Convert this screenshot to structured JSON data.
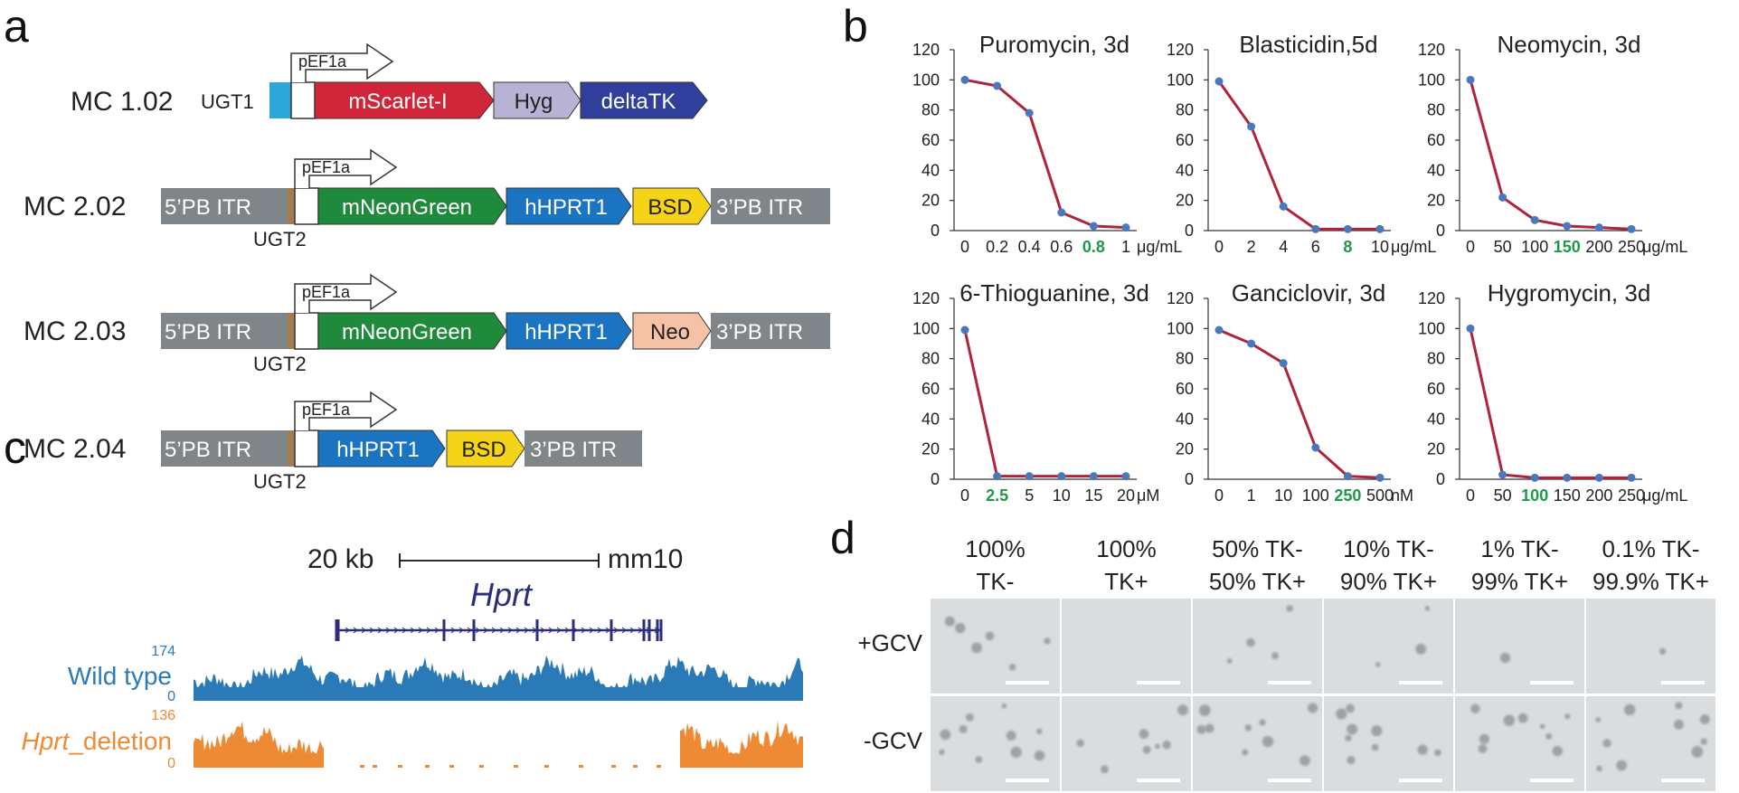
{
  "panels": {
    "a": "a",
    "b": "b",
    "c": "c",
    "d": "d"
  },
  "colors": {
    "pb": "#7f8589",
    "ugt1": "#2aa7d8",
    "ugt2": "#a57a4f",
    "mscarlet": "#d1263a",
    "hyg": "#b8b2d4",
    "deltatk": "#2f3f9b",
    "mneongreen": "#1f8a3c",
    "hhprt1": "#1a74c2",
    "bsd": "#f5d418",
    "neo": "#f6c2a6",
    "curve": "#b0243a",
    "dot": "#4a78bf",
    "green_label": "#1a9a4a",
    "wildtype": "#2a7ab8",
    "deletion": "#ee8a33",
    "gene": "#2c2e7a"
  },
  "panel_a": {
    "constructs": [
      {
        "name": "MC 1.02",
        "ugt": "UGT1",
        "promoter": "pEF1a",
        "parts": [
          {
            "label": "mScarlet-I",
            "color": "mscarlet"
          },
          {
            "label": "Hyg",
            "color": "hyg"
          },
          {
            "label": "deltaTK",
            "color": "deltatk"
          }
        ]
      },
      {
        "name": "MC 2.02",
        "ugt": "UGT2",
        "promoter": "pEF1a",
        "left_itr": "5’PB ITR",
        "right_itr": "3’PB ITR",
        "parts": [
          {
            "label": "mNeonGreen",
            "color": "mneongreen"
          },
          {
            "label": "hHPRT1",
            "color": "hhprt1"
          },
          {
            "label": "BSD",
            "color": "bsd"
          }
        ]
      },
      {
        "name": "MC 2.03",
        "ugt": "UGT2",
        "promoter": "pEF1a",
        "left_itr": "5’PB ITR",
        "right_itr": "3’PB ITR",
        "parts": [
          {
            "label": "mNeonGreen",
            "color": "mneongreen"
          },
          {
            "label": "hHPRT1",
            "color": "hhprt1"
          },
          {
            "label": "Neo",
            "color": "neo"
          }
        ]
      },
      {
        "name": "MC 2.04",
        "ugt": "UGT2",
        "promoter": "pEF1a",
        "left_itr": "5’PB ITR",
        "right_itr": "3’PB ITR",
        "parts": [
          {
            "label": "hHPRT1",
            "color": "hhprt1"
          },
          {
            "label": "BSD",
            "color": "bsd"
          }
        ]
      }
    ]
  },
  "chart_data": [
    {
      "type": "line",
      "title": "Puromycin, 3d",
      "unit": "μg/mL",
      "categories": [
        "0",
        "0.2",
        "0.4",
        "0.6",
        "0.8",
        "1"
      ],
      "highlight_index": 4,
      "values": [
        100,
        96,
        78,
        12,
        3,
        2
      ],
      "ylim": [
        0,
        120
      ],
      "yticks": [
        "0",
        "20",
        "40",
        "60",
        "80",
        "100",
        "120"
      ]
    },
    {
      "type": "line",
      "title": "Blasticidin,5d",
      "unit": "μg/mL",
      "categories": [
        "0",
        "2",
        "4",
        "6",
        "8",
        "10"
      ],
      "highlight_index": 4,
      "values": [
        99,
        69,
        16,
        1,
        1,
        1
      ],
      "ylim": [
        0,
        120
      ],
      "yticks": [
        "0",
        "20",
        "40",
        "60",
        "80",
        "100",
        "120"
      ]
    },
    {
      "type": "line",
      "title": "Neomycin, 3d",
      "unit": "μg/mL",
      "categories": [
        "0",
        "50",
        "100",
        "150",
        "200",
        "250"
      ],
      "highlight_index": 3,
      "values": [
        100,
        22,
        7,
        3,
        2,
        1
      ],
      "ylim": [
        0,
        120
      ],
      "yticks": [
        "0",
        "20",
        "40",
        "60",
        "80",
        "100",
        "120"
      ]
    },
    {
      "type": "line",
      "title": "6-Thioguanine, 3d",
      "unit": "μM",
      "categories": [
        "0",
        "2.5",
        "5",
        "10",
        "15",
        "20"
      ],
      "highlight_index": 1,
      "values": [
        99,
        2,
        2,
        2,
        2,
        2
      ],
      "ylim": [
        0,
        120
      ],
      "yticks": [
        "0",
        "20",
        "40",
        "60",
        "80",
        "100",
        "120"
      ]
    },
    {
      "type": "line",
      "title": "Ganciclovir, 3d",
      "unit": "nM",
      "categories": [
        "0",
        "1",
        "10",
        "100",
        "250",
        "500"
      ],
      "highlight_index": 4,
      "values": [
        99,
        90,
        77,
        21,
        2,
        1
      ],
      "ylim": [
        0,
        120
      ],
      "yticks": [
        "0",
        "20",
        "40",
        "60",
        "80",
        "100",
        "120"
      ]
    },
    {
      "type": "line",
      "title": "Hygromycin, 3d",
      "unit": "μg/mL",
      "categories": [
        "0",
        "50",
        "100",
        "150",
        "200",
        "250"
      ],
      "highlight_index": 2,
      "values": [
        100,
        3,
        1,
        1,
        1,
        1
      ],
      "ylim": [
        0,
        120
      ],
      "yticks": [
        "0",
        "20",
        "40",
        "60",
        "80",
        "100",
        "120"
      ]
    }
  ],
  "panel_c": {
    "scale_label": "20 kb",
    "assembly": "mm10",
    "gene": "Hprt",
    "wild_type": {
      "label": "Wild type",
      "ymax": "174",
      "ymin": "0"
    },
    "deletion": {
      "label_italic": "Hprt",
      "label_rest": "_deletion",
      "ymax": "136",
      "ymin": "0"
    }
  },
  "panel_d": {
    "columns": [
      {
        "line1": "100%",
        "line2": "TK-"
      },
      {
        "line1": "100%",
        "line2": "TK+"
      },
      {
        "line1": "50% TK-",
        "line2": "50% TK+"
      },
      {
        "line1": "10% TK-",
        "line2": "90% TK+"
      },
      {
        "line1": "1% TK-",
        "line2": "99% TK+"
      },
      {
        "line1": "0.1% TK-",
        "line2": "99.9% TK+"
      }
    ],
    "rows": [
      "+GCV",
      "-GCV"
    ]
  }
}
